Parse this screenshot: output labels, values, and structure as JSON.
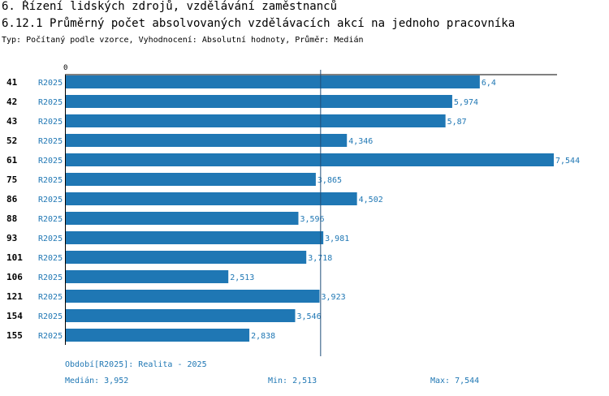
{
  "header": {
    "title": "6. Řízení lidských zdrojů, vzdělávání zaměstnanců",
    "subtitle": "6.12.1 Průměrný počet absolvovaných vzdělávacích akcí na jednoho pracovníka",
    "type_line": "Typ: Počítaný podle vzorce, Vyhodnocení: Absolutní hodnoty, Průměr: Medián"
  },
  "chart_data": {
    "type": "bar",
    "orientation": "horizontal",
    "x_tick_label": "0",
    "xlim": [
      0,
      7.544
    ],
    "series_name": "R2025",
    "categories": [
      "41",
      "42",
      "43",
      "52",
      "61",
      "75",
      "86",
      "88",
      "93",
      "101",
      "106",
      "121",
      "154",
      "155"
    ],
    "values": [
      6.4,
      5.974,
      5.87,
      4.346,
      7.544,
      3.865,
      4.502,
      3.596,
      3.981,
      3.718,
      2.513,
      3.923,
      3.546,
      2.838
    ],
    "value_labels": [
      "6,4",
      "5,974",
      "5,87",
      "4,346",
      "7,544",
      "3,865",
      "4,502",
      "3,596",
      "3,981",
      "3,718",
      "2,513",
      "3,923",
      "3,546",
      "2,838"
    ],
    "median": 3.952,
    "bar_color": "#1f77b4"
  },
  "footer": {
    "period": "Období[R2025]: Realita - 2025",
    "median": "Medián: 3,952",
    "min": "Min: 2,513",
    "max": "Max: 7,544"
  }
}
